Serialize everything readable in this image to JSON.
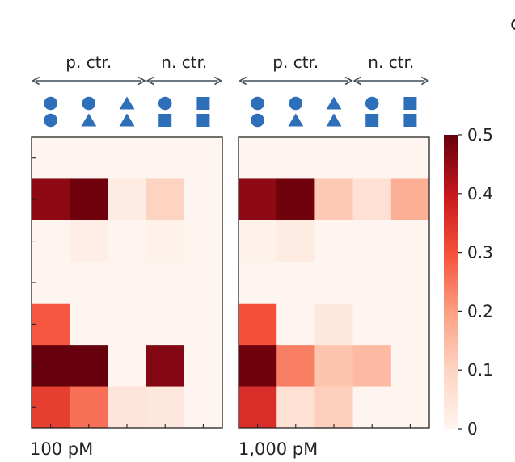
{
  "chart_data": [
    {
      "type": "heatmap",
      "title": "100 pM",
      "columns": 5,
      "rows": [
        [
          0.0,
          0.0,
          0.0,
          0.0,
          0.0
        ],
        [
          0.46,
          0.49,
          0.03,
          0.1,
          0.0
        ],
        [
          0.0,
          0.02,
          0.0,
          0.01,
          0.0
        ],
        [
          0.0,
          0.0,
          0.0,
          0.0,
          0.0
        ],
        [
          0.29,
          0.0,
          0.0,
          0.0,
          0.0
        ],
        [
          0.5,
          0.5,
          0.0,
          0.47,
          0.0
        ],
        [
          0.33,
          0.26,
          0.05,
          0.04,
          0.0
        ]
      ]
    },
    {
      "type": "heatmap",
      "title": "1,000 pM",
      "columns": 5,
      "rows": [
        [
          0.0,
          0.0,
          0.0,
          0.0,
          0.0
        ],
        [
          0.46,
          0.49,
          0.12,
          0.06,
          0.17
        ],
        [
          0.01,
          0.03,
          0.0,
          0.0,
          0.0
        ],
        [
          0.0,
          0.0,
          0.0,
          0.0,
          0.0
        ],
        [
          0.3,
          0.0,
          0.04,
          0.0,
          0.0
        ],
        [
          0.49,
          0.24,
          0.13,
          0.15,
          0.0
        ],
        [
          0.36,
          0.06,
          0.11,
          0.0,
          0.0
        ]
      ]
    }
  ],
  "column_symbols": {
    "top": [
      "circle",
      "circle",
      "triangle",
      "circle",
      "square"
    ],
    "bottom": [
      "circle",
      "triangle",
      "triangle",
      "square",
      "square"
    ]
  },
  "groups": [
    {
      "label": "p. ctr.",
      "from": 0,
      "to": 2
    },
    {
      "label": "n. ctr.",
      "from": 3,
      "to": 4
    }
  ],
  "colorbar": {
    "min": 0,
    "max": 0.5,
    "ticks": [
      "0",
      "0.1",
      "0.2",
      "0.3",
      "0.4",
      "0.5"
    ],
    "tick_values": [
      0,
      0.1,
      0.2,
      0.3,
      0.4,
      0.5
    ]
  },
  "panel_letter": "c",
  "colors": {
    "symbol": "#2e6fba",
    "arrow": "#3d4f5e",
    "cmap": [
      "#fff5f0",
      "#fdd4c2",
      "#fc9f81",
      "#f44f39",
      "#c5171c",
      "#67000d"
    ]
  }
}
